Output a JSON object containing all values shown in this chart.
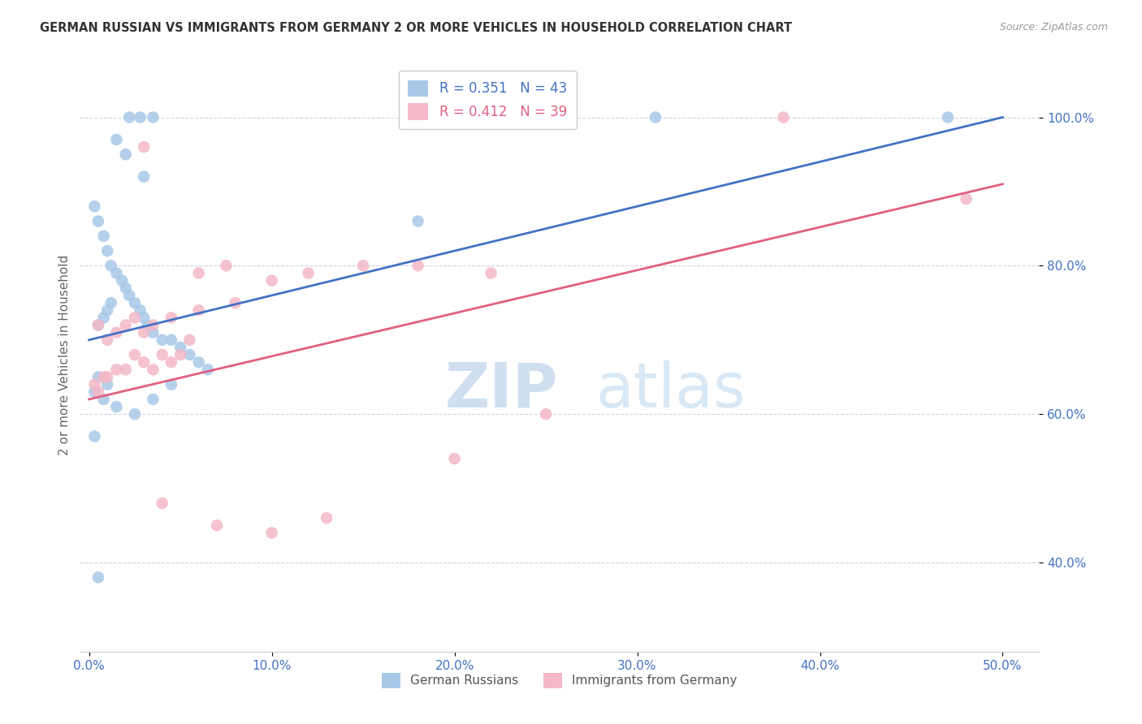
{
  "title": "GERMAN RUSSIAN VS IMMIGRANTS FROM GERMANY 2 OR MORE VEHICLES IN HOUSEHOLD CORRELATION CHART",
  "source": "Source: ZipAtlas.com",
  "xlabel_vals": [
    0.0,
    10.0,
    20.0,
    30.0,
    40.0,
    50.0
  ],
  "ylabel": "2 or more Vehicles in Household",
  "ylabel_vals": [
    40.0,
    60.0,
    80.0,
    100.0
  ],
  "ylim": [
    28.0,
    108.0
  ],
  "xlim": [
    -0.5,
    52.0
  ],
  "blue_R": 0.351,
  "blue_N": 43,
  "pink_R": 0.412,
  "pink_N": 39,
  "blue_color": "#a8c8e8",
  "blue_line_color": "#4472c4",
  "pink_color": "#f4b8c8",
  "pink_line_color": "#e06080",
  "watermark_color": "#d0dff0",
  "background_color": "#ffffff",
  "grid_color": "#d0d4e0",
  "blue_line_x0": 0.0,
  "blue_line_y0": 70.0,
  "blue_line_x1": 50.0,
  "blue_line_y1": 100.0,
  "pink_line_x0": 0.0,
  "pink_line_y0": 62.0,
  "pink_line_x1": 50.0,
  "pink_line_y1": 91.0,
  "blue_scatter_x": [
    2.2,
    2.8,
    3.5,
    1.5,
    2.0,
    3.0,
    0.3,
    0.5,
    0.8,
    1.0,
    1.2,
    1.5,
    1.8,
    2.0,
    2.2,
    2.5,
    2.8,
    3.0,
    3.2,
    3.5,
    4.0,
    4.5,
    5.0,
    5.5,
    6.0,
    0.5,
    1.0,
    0.3,
    0.8,
    1.5,
    2.5,
    3.5,
    4.5,
    0.5,
    0.8,
    1.0,
    1.2,
    18.0,
    31.0,
    47.0,
    0.5,
    0.3,
    6.5
  ],
  "blue_scatter_y": [
    100.0,
    100.0,
    100.0,
    97.0,
    95.0,
    92.0,
    88.0,
    86.0,
    84.0,
    82.0,
    80.0,
    79.0,
    78.0,
    77.0,
    76.0,
    75.0,
    74.0,
    73.0,
    72.0,
    71.0,
    70.0,
    70.0,
    69.0,
    68.0,
    67.0,
    65.0,
    64.0,
    63.0,
    62.0,
    61.0,
    60.0,
    62.0,
    64.0,
    72.0,
    73.0,
    74.0,
    75.0,
    86.0,
    100.0,
    100.0,
    38.0,
    57.0,
    66.0
  ],
  "pink_scatter_x": [
    0.3,
    0.5,
    0.8,
    1.0,
    1.5,
    2.0,
    2.5,
    3.0,
    3.5,
    4.0,
    4.5,
    5.0,
    5.5,
    0.5,
    1.0,
    1.5,
    2.0,
    2.5,
    3.0,
    3.5,
    4.5,
    6.0,
    8.0,
    10.0,
    12.0,
    15.0,
    18.0,
    22.0,
    3.0,
    4.0,
    7.0,
    10.0,
    13.0,
    38.0,
    48.0,
    6.0,
    7.5,
    20.0,
    25.0
  ],
  "pink_scatter_y": [
    64.0,
    63.0,
    65.0,
    65.0,
    66.0,
    66.0,
    68.0,
    67.0,
    66.0,
    68.0,
    67.0,
    68.0,
    70.0,
    72.0,
    70.0,
    71.0,
    72.0,
    73.0,
    71.0,
    72.0,
    73.0,
    74.0,
    75.0,
    78.0,
    79.0,
    80.0,
    80.0,
    79.0,
    96.0,
    48.0,
    45.0,
    44.0,
    46.0,
    100.0,
    89.0,
    79.0,
    80.0,
    54.0,
    60.0
  ]
}
